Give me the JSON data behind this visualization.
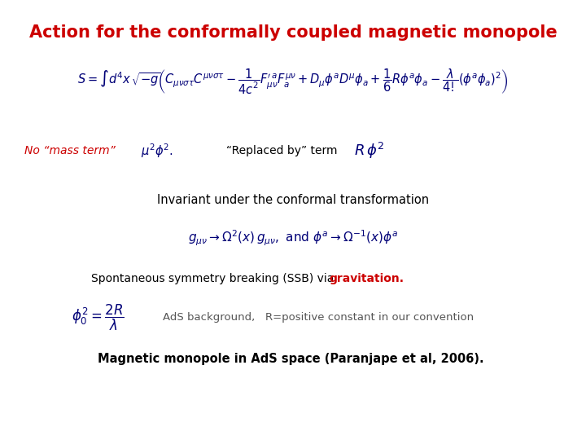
{
  "title": "Action for the conformally coupled magnetic monopole",
  "title_color": "#cc0000",
  "title_fontsize": 15,
  "bg_color": "#ffffff",
  "math_color": "#000077",
  "red_color": "#cc0000",
  "text_color": "#000000",
  "gray_color": "#555555",
  "no_mass_label": "No “mass term”",
  "replaced_label": "“Replaced by” term",
  "invariant_text": "Invariant under the conformal transformation",
  "ssb_text_normal": "Spontaneous symmetry breaking (SSB) via ",
  "ssb_text_red": "gravitation.",
  "ads_text": "AdS background,   R=positive constant in our convention",
  "monopole_text": "Magnetic monopole in AdS space (Paranjape et al, 2006)."
}
